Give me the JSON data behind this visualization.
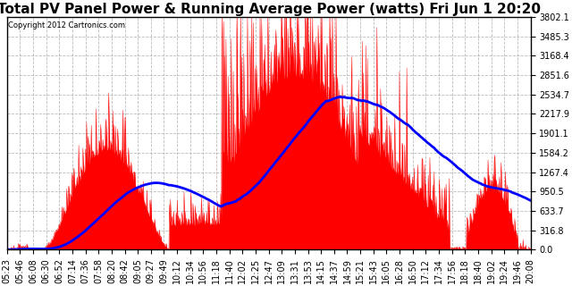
{
  "title": "Total PV Panel Power & Running Average Power (watts) Fri Jun 1 20:20",
  "copyright": "Copyright 2012 Cartronics.com",
  "background_color": "#ffffff",
  "plot_bg_color": "#ffffff",
  "y_min": 0.0,
  "y_max": 3802.1,
  "y_ticks": [
    0.0,
    316.8,
    633.7,
    950.5,
    1267.4,
    1584.2,
    1901.1,
    2217.9,
    2534.7,
    2851.6,
    3168.4,
    3485.3,
    3802.1
  ],
  "x_labels": [
    "05:23",
    "05:46",
    "06:08",
    "06:30",
    "06:52",
    "07:14",
    "07:36",
    "07:58",
    "08:20",
    "08:42",
    "09:05",
    "09:27",
    "09:49",
    "10:12",
    "10:34",
    "10:56",
    "11:18",
    "11:40",
    "12:02",
    "12:25",
    "12:47",
    "13:09",
    "13:31",
    "13:53",
    "14:15",
    "14:37",
    "14:59",
    "15:21",
    "15:43",
    "16:05",
    "16:28",
    "16:50",
    "17:12",
    "17:34",
    "17:56",
    "18:18",
    "18:40",
    "19:02",
    "19:24",
    "19:46",
    "20:08"
  ],
  "pv_color": "#ff0000",
  "avg_color": "#0000ff",
  "grid_color": "#aaaaaa",
  "title_fontsize": 11,
  "tick_fontsize": 7.0
}
